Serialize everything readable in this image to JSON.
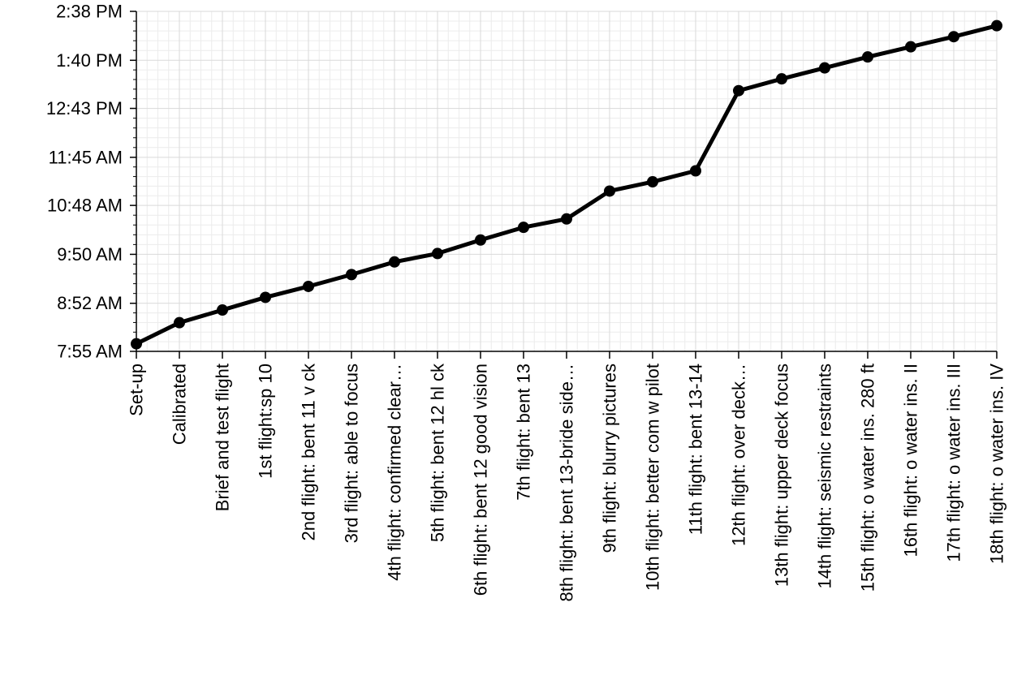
{
  "chart_data": {
    "type": "line",
    "title": "",
    "xlabel": "",
    "ylabel": "",
    "grid": true,
    "line_color": "#000000",
    "grid_color": "#d9d9d9",
    "categories": [
      "Set-up",
      "Calibrated",
      "Brief and test flight",
      "1st flight:sp 10",
      "2nd flight: bent 11 v ck",
      "3rd flight: able to focus",
      "4th flight: confirmed clear…",
      "5th flight: bent 12 hl ck",
      "6th flight: bent 12 good vision",
      "7th flight: bent 13",
      "8th flight: bent 13-bride side…",
      "9th flight: blurry pictures",
      "10th flight: better com w pilot",
      "11th flight: bent 13-14",
      "12th flight: over deck…",
      "13th flight: upper deck focus",
      "14th flight: seismic restraints",
      "15th flight: o water ins. 280 ft",
      "16th flight: o water ins. II",
      "17th flight: o water ins. III",
      "18th flight: o water ins. IV"
    ],
    "values_minutes": [
      484,
      509,
      524,
      539,
      552,
      566,
      581,
      591,
      607,
      622,
      632,
      665,
      676,
      689,
      784,
      798,
      811,
      824,
      836,
      848,
      861
    ],
    "ylim_minutes": [
      475,
      878
    ],
    "y_tick_minutes": [
      475,
      532,
      590,
      648,
      705,
      763,
      820,
      878
    ],
    "y_tick_labels": [
      "7:55 AM",
      "8:52 AM",
      "9:50 AM",
      "10:48 AM",
      "11:45 AM",
      "12:43 PM",
      "1:40 PM",
      "2:38 PM"
    ]
  }
}
